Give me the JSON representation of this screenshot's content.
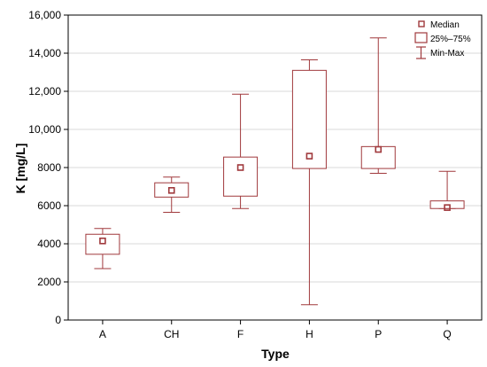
{
  "chart_data": {
    "type": "box",
    "xlabel": "Type",
    "ylabel": "K [mg/L]",
    "ylim": [
      0,
      16000
    ],
    "yticks": [
      0,
      2000,
      4000,
      6000,
      8000,
      10000,
      12000,
      14000,
      16000
    ],
    "ytick_labels": [
      "0",
      "2000",
      "4000",
      "6000",
      "8000",
      "10,000",
      "12,000",
      "14,000",
      "16,000"
    ],
    "grid": true,
    "legend_position": "top-right",
    "legend": [
      "Median",
      "25%–75%",
      "Min-Max"
    ],
    "color": "#a0393c",
    "categories": [
      "A",
      "CH",
      "F",
      "H",
      "P",
      "Q"
    ],
    "boxes": [
      {
        "category": "A",
        "min": 2700,
        "q1": 3450,
        "median": 4150,
        "q3": 4500,
        "max": 4800
      },
      {
        "category": "CH",
        "min": 5650,
        "q1": 6450,
        "median": 6800,
        "q3": 7200,
        "max": 7500
      },
      {
        "category": "F",
        "min": 5850,
        "q1": 6500,
        "median": 8000,
        "q3": 8550,
        "max": 11850
      },
      {
        "category": "H",
        "min": 800,
        "q1": 7950,
        "median": 8600,
        "q3": 13100,
        "max": 13650
      },
      {
        "category": "P",
        "min": 7700,
        "q1": 7950,
        "median": 8950,
        "q3": 9100,
        "max": 14800
      },
      {
        "category": "Q",
        "min": 5850,
        "q1": 5850,
        "median": 5900,
        "q3": 6250,
        "max": 7800
      }
    ]
  }
}
